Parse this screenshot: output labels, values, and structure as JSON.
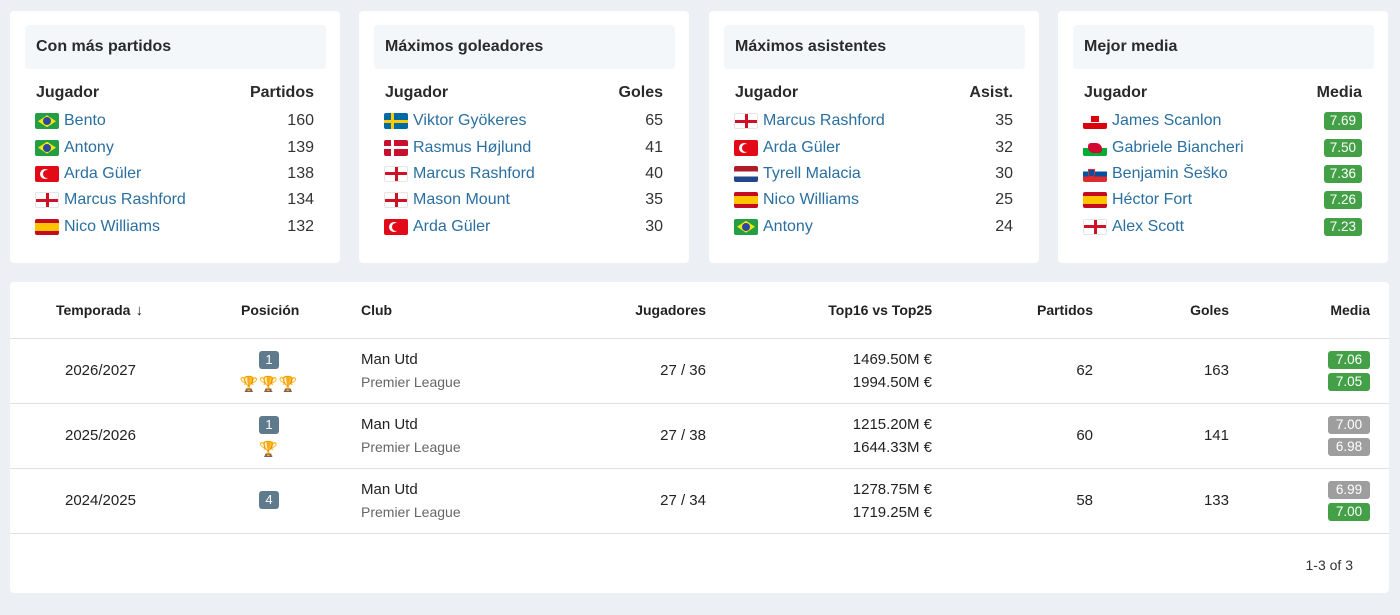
{
  "cards": [
    {
      "title": "Con más partidos",
      "col_player": "Jugador",
      "col_value": "Partidos",
      "rows": [
        {
          "flag": "brazil-flag",
          "name": "Bento",
          "value": "160"
        },
        {
          "flag": "brazil-flag",
          "name": "Antony",
          "value": "139"
        },
        {
          "flag": "turkey-flag",
          "name": "Arda Güler",
          "value": "138"
        },
        {
          "flag": "england-flag",
          "name": "Marcus Rashford",
          "value": "134"
        },
        {
          "flag": "spain-flag",
          "name": "Nico Williams",
          "value": "132"
        }
      ]
    },
    {
      "title": "Máximos goleadores",
      "col_player": "Jugador",
      "col_value": "Goles",
      "rows": [
        {
          "flag": "sweden-flag",
          "name": "Viktor Gyökeres",
          "value": "65"
        },
        {
          "flag": "denmark-flag",
          "name": "Rasmus Højlund",
          "value": "41"
        },
        {
          "flag": "england-flag",
          "name": "Marcus Rashford",
          "value": "40"
        },
        {
          "flag": "england-flag",
          "name": "Mason Mount",
          "value": "35"
        },
        {
          "flag": "turkey-flag",
          "name": "Arda Güler",
          "value": "30"
        }
      ]
    },
    {
      "title": "Máximos asistentes",
      "col_player": "Jugador",
      "col_value": "Asist.",
      "rows": [
        {
          "flag": "england-flag",
          "name": "Marcus Rashford",
          "value": "35"
        },
        {
          "flag": "turkey-flag",
          "name": "Arda Güler",
          "value": "32"
        },
        {
          "flag": "netherlands-flag",
          "name": "Tyrell Malacia",
          "value": "30"
        },
        {
          "flag": "spain-flag",
          "name": "Nico Williams",
          "value": "25"
        },
        {
          "flag": "brazil-flag",
          "name": "Antony",
          "value": "24"
        }
      ]
    },
    {
      "title": "Mejor media",
      "col_player": "Jugador",
      "col_value": "Media",
      "rows": [
        {
          "flag": "gibraltar-flag",
          "name": "James Scanlon",
          "value": "7.69"
        },
        {
          "flag": "wales-flag",
          "name": "Gabriele Biancheri",
          "value": "7.50"
        },
        {
          "flag": "slovenia-flag",
          "name": "Benjamin Šeško",
          "value": "7.36"
        },
        {
          "flag": "spain-flag",
          "name": "Héctor Fort",
          "value": "7.26"
        },
        {
          "flag": "england-flag",
          "name": "Alex Scott",
          "value": "7.23"
        }
      ]
    }
  ],
  "table": {
    "headers": {
      "season": "Temporada",
      "position": "Posición",
      "club": "Club",
      "players": "Jugadores",
      "value": "Top16 vs Top25",
      "matches": "Partidos",
      "goals": "Goles",
      "rating": "Media"
    },
    "sort_icon": "↓",
    "rows": [
      {
        "season": "2026/2027",
        "position": "1",
        "trophies": "🏆🏆🏆",
        "club": "Man Utd",
        "league": "Premier League",
        "players": "27 / 36",
        "value_top16": "1469.50M €",
        "value_top25": "1994.50M €",
        "matches": "62",
        "goals": "163",
        "rating_1": "7.06",
        "rating_2": "7.05"
      },
      {
        "season": "2025/2026",
        "position": "1",
        "trophies": "🏆",
        "club": "Man Utd",
        "league": "Premier League",
        "players": "27 / 38",
        "value_top16": "1215.20M €",
        "value_top25": "1644.33M €",
        "matches": "60",
        "goals": "141",
        "rating_1": "7.00",
        "rating_2": "6.98"
      },
      {
        "season": "2024/2025",
        "position": "4",
        "trophies": "",
        "club": "Man Utd",
        "league": "Premier League",
        "players": "27 / 34",
        "value_top16": "1278.75M €",
        "value_top25": "1719.25M €",
        "matches": "58",
        "goals": "133",
        "rating_1": "6.99",
        "rating_2": "7.00"
      }
    ],
    "pagination": "1-3 of 3"
  },
  "colors": {
    "rating_good": "#43a047",
    "rating_neutral": "#9e9e9e",
    "link": "#2a6fa0",
    "position_badge": "#5f7a8c",
    "trophy": "#f0a11b"
  }
}
